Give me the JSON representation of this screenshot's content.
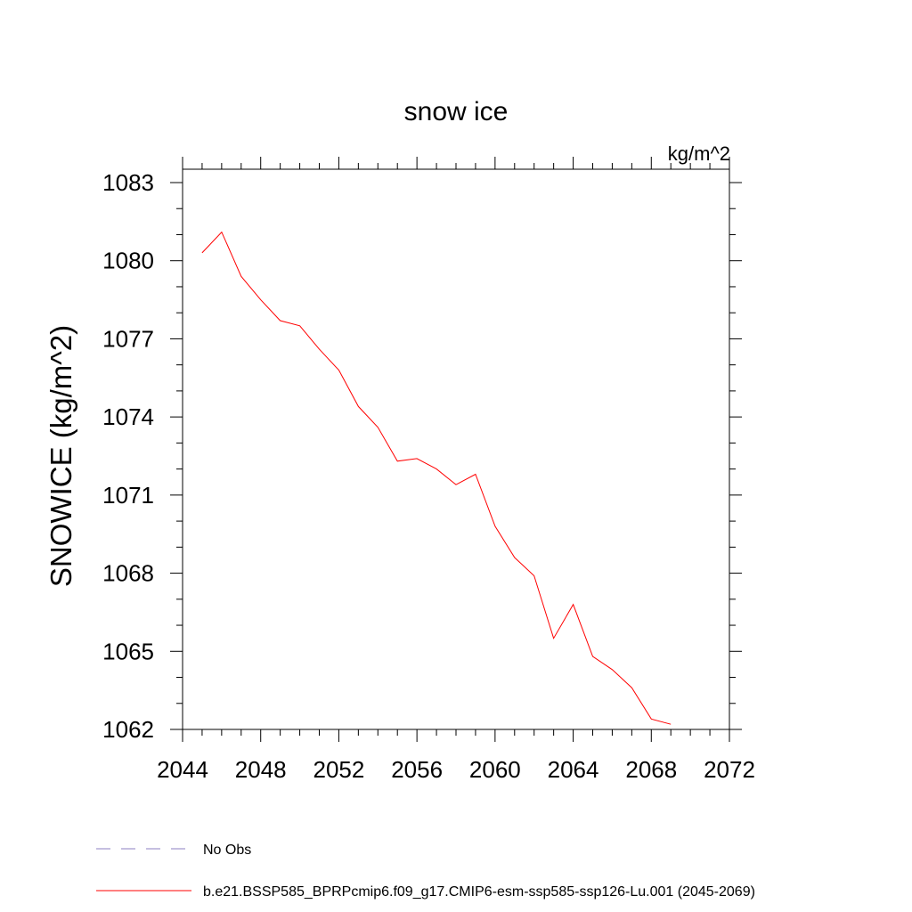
{
  "chart_data": {
    "type": "line",
    "title": "snow ice",
    "units_label": "kg/m^2",
    "xlabel": "",
    "ylabel": "SNOWICE  (kg/m^2)",
    "xlim": [
      2044,
      2072
    ],
    "ylim": [
      1062,
      1083.5
    ],
    "x_ticks": [
      2044,
      2048,
      2052,
      2056,
      2060,
      2064,
      2068,
      2072
    ],
    "y_ticks": [
      1062,
      1065,
      1068,
      1071,
      1074,
      1077,
      1080,
      1083
    ],
    "grid": false,
    "legend_position": "bottom-left",
    "series": [
      {
        "name": "b.e21.BSSP585_BPRPcmip6.f09_g17.CMIP6-esm-ssp585-ssp126-Lu.001 (2045-2069)",
        "color": "#ff0000",
        "style": "solid",
        "x": [
          2045,
          2046,
          2047,
          2048,
          2049,
          2050,
          2051,
          2052,
          2053,
          2054,
          2055,
          2056,
          2057,
          2058,
          2059,
          2060,
          2061,
          2062,
          2063,
          2064,
          2065,
          2066,
          2067,
          2068,
          2069
        ],
        "y": [
          1080.3,
          1081.1,
          1079.4,
          1078.5,
          1077.7,
          1077.5,
          1076.6,
          1075.8,
          1074.4,
          1073.6,
          1072.3,
          1072.4,
          1072.0,
          1071.4,
          1071.8,
          1069.8,
          1068.6,
          1067.9,
          1065.5,
          1066.8,
          1064.8,
          1064.3,
          1063.6,
          1062.4,
          1062.2
        ]
      },
      {
        "name": "No Obs",
        "color": "#8c7fc0",
        "style": "dashed",
        "x": [],
        "y": []
      }
    ]
  }
}
